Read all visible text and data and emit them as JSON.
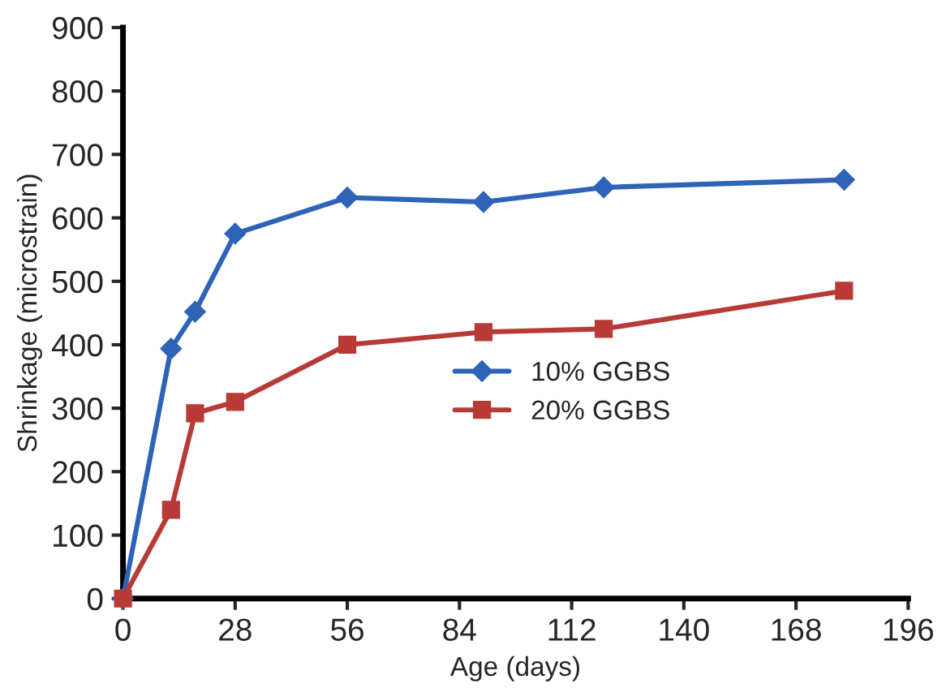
{
  "chart_data": {
    "type": "line",
    "xlabel": "Age (days)",
    "ylabel": "Shrinkage (microstrain)",
    "xlim": [
      0,
      196
    ],
    "xticks": [
      0,
      28,
      56,
      84,
      112,
      140,
      168,
      196
    ],
    "ylim": [
      0,
      900
    ],
    "yticks": [
      0,
      100,
      200,
      300,
      400,
      500,
      600,
      700,
      800,
      900
    ],
    "grid": false,
    "legend": "center",
    "line_style": "solid",
    "series": [
      {
        "name": "10% GGBS",
        "color": "#2e63b8",
        "marker": "diamond",
        "x": [
          0,
          12,
          18,
          28,
          56,
          90,
          120,
          180
        ],
        "values": [
          0,
          394,
          452,
          575,
          632,
          625,
          648,
          660
        ]
      },
      {
        "name": "20% GGBS",
        "color": "#b83a36",
        "marker": "square",
        "x": [
          0,
          12,
          18,
          28,
          56,
          90,
          120,
          180
        ],
        "values": [
          0,
          140,
          292,
          310,
          400,
          420,
          425,
          485
        ]
      }
    ]
  }
}
